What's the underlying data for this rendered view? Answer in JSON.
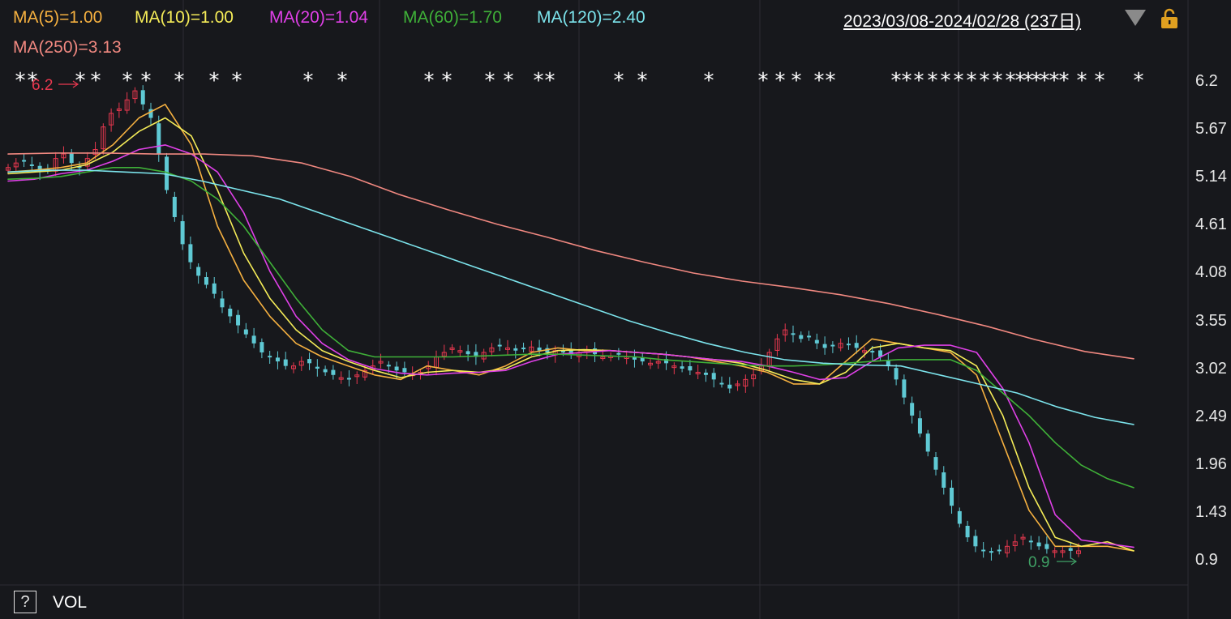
{
  "legend": [
    {
      "label": "MA(5)=1.00",
      "color": "#f5b040"
    },
    {
      "label": "MA(10)=1.00",
      "color": "#f5ec58"
    },
    {
      "label": "MA(20)=1.04",
      "color": "#e040e8"
    },
    {
      "label": "MA(60)=1.70",
      "color": "#3fb038"
    },
    {
      "label": "MA(120)=2.40",
      "color": "#7ce4ec"
    },
    {
      "label": "MA(250)=3.13",
      "color": "#f08880"
    }
  ],
  "header": {
    "date_range": "2023/03/08-2024/02/28 (237日)"
  },
  "y_axis_labels": [
    "6.2",
    "5.67",
    "5.14",
    "4.61",
    "4.08",
    "3.55",
    "3.02",
    "2.49",
    "1.96",
    "1.43",
    "0.9"
  ],
  "footer": {
    "help_symbol": "?",
    "volume_label": "VOL"
  },
  "colors": {
    "background": "#17181c",
    "up": "#e8384f",
    "down": "#5fc9d4",
    "grid": "#2c2d33",
    "high_marker": "#e8384f",
    "low_marker": "#3fa065"
  },
  "chart_data": {
    "type": "candlestick",
    "x_range": [
      "2023/03/08",
      "2024/02/28"
    ],
    "trading_days": 237,
    "ylim": [
      0.9,
      6.2
    ],
    "max_marker": {
      "label": "6.2",
      "value": 6.2
    },
    "min_marker": {
      "label": "0.9",
      "value": 0.9
    },
    "event_marker_symbol": "*",
    "price_series_approx": [
      5.25,
      5.3,
      5.32,
      5.28,
      5.2,
      5.22,
      5.35,
      5.4,
      5.3,
      5.25,
      5.35,
      5.45,
      5.7,
      5.85,
      5.9,
      6.0,
      6.1,
      5.95,
      5.8,
      5.4,
      5.0,
      4.7,
      4.4,
      4.2,
      4.05,
      3.95,
      3.85,
      3.7,
      3.6,
      3.5,
      3.4,
      3.3,
      3.2,
      3.15,
      3.1,
      3.05,
      3.05,
      3.1,
      3.08,
      3.02,
      2.98,
      2.95,
      2.92,
      2.9,
      2.95,
      3.0,
      3.05,
      3.1,
      3.05,
      3.0,
      2.98,
      2.96,
      2.98,
      3.05,
      3.15,
      3.2,
      3.25,
      3.22,
      3.18,
      3.15,
      3.2,
      3.25,
      3.28,
      3.25,
      3.22,
      3.24,
      3.26,
      3.22,
      3.2,
      3.22,
      3.2,
      3.18,
      3.2,
      3.22,
      3.18,
      3.15,
      3.16,
      3.18,
      3.15,
      3.12,
      3.1,
      3.08,
      3.1,
      3.08,
      3.05,
      3.02,
      3.0,
      2.98,
      2.95,
      2.9,
      2.85,
      2.8,
      2.85,
      2.9,
      2.95,
      3.05,
      3.2,
      3.35,
      3.45,
      3.4,
      3.35,
      3.38,
      3.3,
      3.25,
      3.28,
      3.3,
      3.28,
      3.25,
      3.22,
      3.2,
      3.15,
      3.05,
      2.9,
      2.7,
      2.5,
      2.3,
      2.1,
      1.9,
      1.7,
      1.5,
      1.3,
      1.15,
      1.05,
      1.0,
      0.98,
      1.0,
      1.05,
      1.1,
      1.15,
      1.1,
      1.05,
      1.02,
      1.0,
      1.0,
      1.0,
      1.0
    ],
    "series": [
      {
        "name": "MA(5)",
        "last_value": 1.0,
        "color": "#f5b040",
        "values": [
          5.2,
          5.22,
          5.25,
          5.3,
          5.5,
          5.8,
          5.95,
          5.5,
          4.6,
          4.0,
          3.6,
          3.3,
          3.15,
          3.05,
          2.95,
          2.9,
          3.05,
          3.0,
          2.95,
          3.05,
          3.2,
          3.25,
          3.22,
          3.22,
          3.2,
          3.18,
          3.15,
          3.1,
          3.05,
          2.98,
          2.85,
          2.85,
          3.1,
          3.35,
          3.3,
          3.25,
          3.2,
          2.95,
          2.2,
          1.45,
          1.05,
          1.05,
          1.05,
          1.0
        ]
      },
      {
        "name": "MA(10)",
        "last_value": 1.0,
        "color": "#f5ec58",
        "values": [
          5.18,
          5.2,
          5.22,
          5.28,
          5.42,
          5.65,
          5.8,
          5.6,
          5.0,
          4.3,
          3.8,
          3.45,
          3.22,
          3.1,
          3.0,
          2.92,
          2.98,
          3.0,
          2.98,
          3.02,
          3.15,
          3.22,
          3.23,
          3.22,
          3.2,
          3.18,
          3.15,
          3.12,
          3.08,
          3.0,
          2.9,
          2.85,
          2.98,
          3.25,
          3.3,
          3.25,
          3.22,
          3.05,
          2.5,
          1.7,
          1.15,
          1.05,
          1.1,
          1.0
        ]
      },
      {
        "name": "MA(20)",
        "last_value": 1.04,
        "color": "#e040e8",
        "values": [
          5.1,
          5.12,
          5.18,
          5.22,
          5.32,
          5.45,
          5.5,
          5.4,
          5.2,
          4.75,
          4.1,
          3.6,
          3.3,
          3.12,
          3.02,
          2.97,
          2.95,
          2.97,
          2.98,
          3.0,
          3.1,
          3.18,
          3.2,
          3.22,
          3.2,
          3.18,
          3.15,
          3.12,
          3.1,
          3.05,
          2.98,
          2.9,
          2.92,
          3.1,
          3.25,
          3.28,
          3.28,
          3.2,
          2.8,
          2.2,
          1.4,
          1.12,
          1.08,
          1.04
        ]
      },
      {
        "name": "MA(60)",
        "last_value": 1.7,
        "color": "#3fb038",
        "values": [
          5.12,
          5.13,
          5.15,
          5.2,
          5.25,
          5.25,
          5.2,
          5.1,
          4.9,
          4.6,
          4.2,
          3.8,
          3.45,
          3.22,
          3.15,
          3.15,
          3.15,
          3.15,
          3.16,
          3.17,
          3.18,
          3.18,
          3.17,
          3.16,
          3.15,
          3.12,
          3.1,
          3.08,
          3.06,
          3.05,
          3.05,
          3.06,
          3.08,
          3.1,
          3.12,
          3.12,
          3.12,
          3.0,
          2.75,
          2.5,
          2.2,
          1.95,
          1.8,
          1.7
        ]
      },
      {
        "name": "MA(120)",
        "last_value": 2.4,
        "color": "#7ce4ec",
        "values": [
          5.2,
          5.22,
          5.22,
          5.2,
          5.18,
          5.1,
          5.0,
          4.9,
          4.75,
          4.6,
          4.45,
          4.3,
          4.15,
          4.0,
          3.85,
          3.7,
          3.55,
          3.42,
          3.3,
          3.2,
          3.12,
          3.08,
          3.06,
          3.05,
          2.95,
          2.85,
          2.75,
          2.6,
          2.48,
          2.4
        ]
      },
      {
        "name": "MA(250)",
        "last_value": 3.13,
        "color": "#f08880",
        "values": [
          5.4,
          5.41,
          5.41,
          5.4,
          5.4,
          5.38,
          5.3,
          5.15,
          4.95,
          4.78,
          4.62,
          4.48,
          4.33,
          4.2,
          4.08,
          3.99,
          3.92,
          3.84,
          3.74,
          3.62,
          3.49,
          3.34,
          3.21,
          3.13
        ]
      }
    ]
  }
}
